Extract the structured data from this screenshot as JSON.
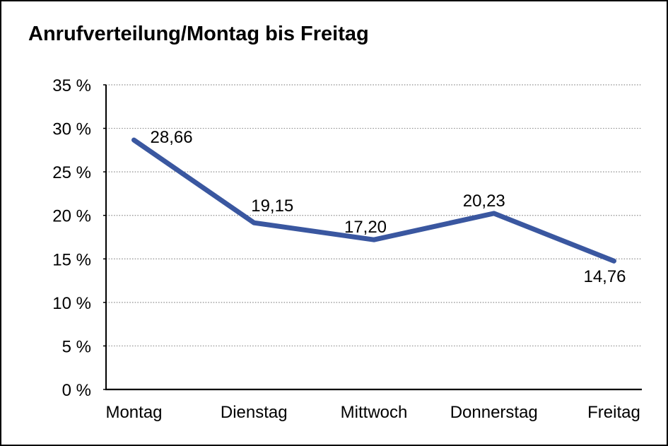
{
  "frame": {
    "background": "#ffffff",
    "border_color": "#000000"
  },
  "chart_data": {
    "type": "line",
    "title": "Anrufverteilung/Montag bis Freitag",
    "categories": [
      "Montag",
      "Dienstag",
      "Mittwoch",
      "Donnerstag",
      "Freitag"
    ],
    "values": [
      28.66,
      19.15,
      17.2,
      20.23,
      14.76
    ],
    "point_labels": [
      "28,66",
      "19,15",
      "17,20",
      "20,23",
      "14,76"
    ],
    "xlabel": "",
    "ylabel": "",
    "ylim": [
      0,
      35
    ],
    "y_tick_step": 5,
    "y_tick_labels": [
      "0 %",
      "5 %",
      "10 %",
      "15 %",
      "20 %",
      "25 %",
      "30 %",
      "35 %"
    ],
    "grid": "horizontal-dotted",
    "legend": "none",
    "colors": {
      "line": "#3a57a0",
      "grid": "#8c8c8c",
      "axis": "#000000",
      "text": "#000000"
    }
  }
}
